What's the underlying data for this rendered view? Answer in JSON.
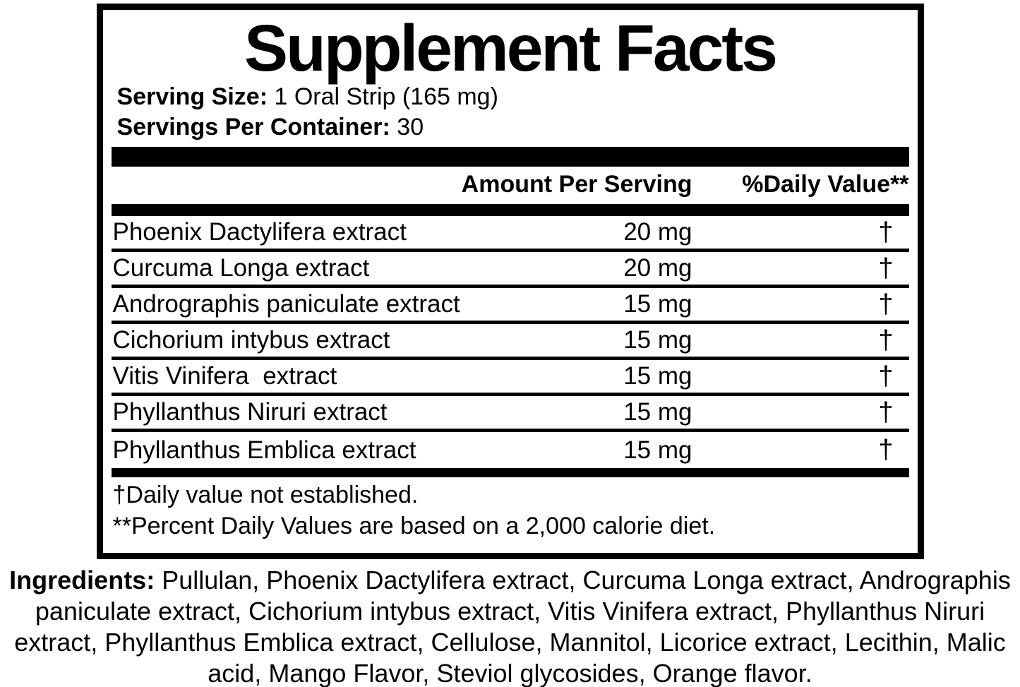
{
  "panel": {
    "title": "Supplement Facts",
    "serving_size_label": "Serving Size:",
    "serving_size_value": "1 Oral Strip (165 mg)",
    "servings_per_container_label": "Servings Per Container:",
    "servings_per_container_value": "30"
  },
  "table": {
    "amount_header": "Amount Per Serving",
    "daily_value_header": "%Daily Value**",
    "rows": [
      {
        "name": "Phoenix Dactylifera extract",
        "amount": "20 mg",
        "daily_value": "†"
      },
      {
        "name": "Curcuma Longa extract",
        "amount": "20 mg",
        "daily_value": "†"
      },
      {
        "name": "Andrographis paniculate extract",
        "amount": "15 mg",
        "daily_value": "†"
      },
      {
        "name": "Cichorium intybus extract",
        "amount": "15 mg",
        "daily_value": "†"
      },
      {
        "name": "Vitis Vinifera  extract",
        "amount": "15 mg",
        "daily_value": "†"
      },
      {
        "name": "Phyllanthus Niruri extract",
        "amount": "15 mg",
        "daily_value": "†"
      },
      {
        "name": "Phyllanthus Emblica extract",
        "amount": "15 mg",
        "daily_value": "†"
      }
    ]
  },
  "footnotes": {
    "daily_value_note": "†Daily value not established.",
    "percent_note": "**Percent Daily Values are based on a 2,000 calorie diet."
  },
  "ingredients": {
    "label": "Ingredients:",
    "text": " Pullulan, Phoenix Dactylifera extract, Curcuma Longa extract, Andrographis paniculate extract, Cichorium intybus extract, Vitis Vinifera extract, Phyllanthus Niruri extract, Phyllanthus Emblica extract, Cellulose, Mannitol, Licorice extract, Lecithin, Malic acid, Mango Flavor, Steviol glycosides, Orange flavor."
  },
  "colors": {
    "text": "#000000",
    "background": "#ffffff"
  }
}
